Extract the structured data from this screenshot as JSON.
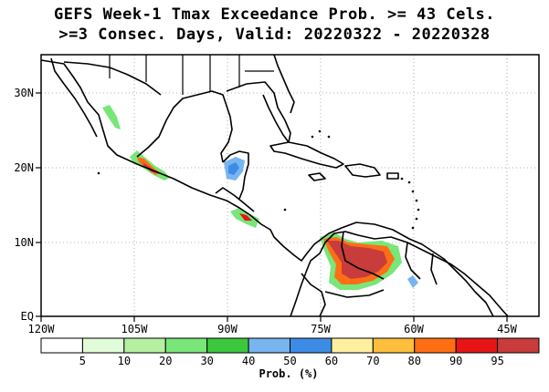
{
  "title_line1": "GEFS Week-1 Tmax Exceedance Prob. >= 43 Cels.",
  "title_line2": ">=3 Consec. Days, Valid: 20220322 - 20220328",
  "lat_labels": [
    "30N",
    "20N",
    "10N",
    "EQ"
  ],
  "lon_labels": [
    "120W",
    "105W",
    "90W",
    "75W",
    "60W",
    "45W"
  ],
  "colorbar": {
    "label": "Prob. (%)",
    "ticks": [
      "5",
      "10",
      "20",
      "30",
      "40",
      "50",
      "60",
      "70",
      "80",
      "90",
      "95"
    ],
    "colors": [
      "#ffffff",
      "#e1fcd8",
      "#b4f0a0",
      "#78e678",
      "#3cc83c",
      "#78b4f0",
      "#3c8ce6",
      "#fff0a0",
      "#ffbe3c",
      "#ff6e14",
      "#e61414",
      "#c83c3c"
    ]
  }
}
